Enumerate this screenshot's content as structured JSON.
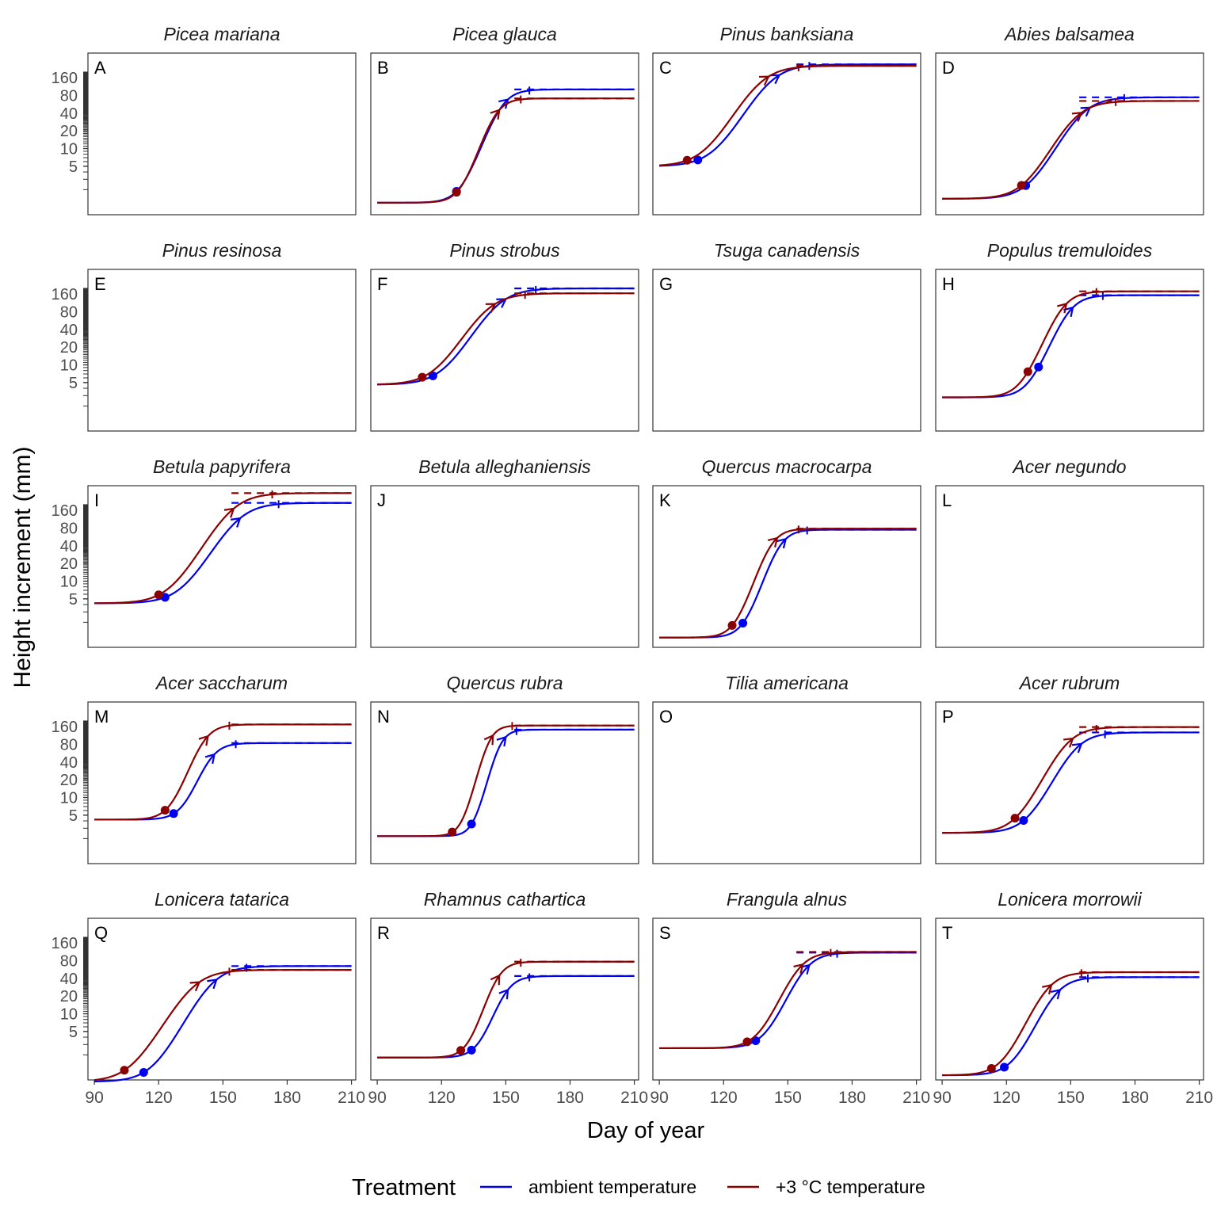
{
  "chart_data": {
    "type": "line",
    "xlabel": "Day of year",
    "ylabel": "Height increment (mm)",
    "xlim": [
      87,
      212
    ],
    "x_ticks": [
      90,
      120,
      150,
      180,
      210
    ],
    "y_scale": "log",
    "y_ticks": [
      5,
      10,
      20,
      40,
      80,
      160
    ],
    "grid": false,
    "legend": {
      "title": "Treatment",
      "position": "bottom",
      "entries": [
        {
          "label": "ambient temperature",
          "color": "#0000ee"
        },
        {
          "label": "+3 °C temperature",
          "color": "#8b0000"
        }
      ]
    },
    "panels": [
      {
        "letter": "A",
        "species": "Picea mariana",
        "has_data": false
      },
      {
        "letter": "B",
        "species": "Picea glauca",
        "has_data": true,
        "ambient": {
          "base": 1.2,
          "asym": 100,
          "mid": 148,
          "scale": 4.2,
          "start_day": 127,
          "max_rate_day": 151,
          "end_day": 161
        },
        "warm": {
          "base": 1.2,
          "asym": 70,
          "mid": 145,
          "scale": 3.8,
          "start_day": 127,
          "max_rate_day": 147,
          "end_day": 157
        }
      },
      {
        "letter": "C",
        "species": "Pinus banksiana",
        "has_data": true,
        "ambient": {
          "base": 5.0,
          "asym": 265,
          "mid": 142,
          "scale": 6.5,
          "start_day": 108,
          "max_rate_day": 146,
          "end_day": 160
        },
        "warm": {
          "base": 5.0,
          "asym": 250,
          "mid": 137,
          "scale": 6.5,
          "start_day": 103,
          "max_rate_day": 141,
          "end_day": 155
        }
      },
      {
        "letter": "D",
        "species": "Abies balsamea",
        "has_data": true,
        "ambient": {
          "base": 1.4,
          "asym": 73,
          "mid": 155,
          "scale": 6.0,
          "start_day": 129,
          "max_rate_day": 159,
          "end_day": 175
        },
        "warm": {
          "base": 1.4,
          "asym": 63,
          "mid": 152,
          "scale": 6.0,
          "start_day": 127,
          "max_rate_day": 155,
          "end_day": 171
        }
      },
      {
        "letter": "E",
        "species": "Pinus resinosa",
        "has_data": false
      },
      {
        "letter": "F",
        "species": "Pinus strobus",
        "has_data": true,
        "ambient": {
          "base": 4.6,
          "asym": 195,
          "mid": 146,
          "scale": 6.5,
          "start_day": 116,
          "max_rate_day": 150,
          "end_day": 164
        },
        "warm": {
          "base": 4.6,
          "asym": 160,
          "mid": 141,
          "scale": 6.5,
          "start_day": 111,
          "max_rate_day": 145,
          "end_day": 159
        }
      },
      {
        "letter": "G",
        "species": "Tsuga canadensis",
        "has_data": false
      },
      {
        "letter": "H",
        "species": "Populus tremuloides",
        "has_data": true,
        "ambient": {
          "base": 2.8,
          "asym": 150,
          "mid": 149,
          "scale": 4.5,
          "start_day": 135,
          "max_rate_day": 151,
          "end_day": 165
        },
        "warm": {
          "base": 2.8,
          "asym": 175,
          "mid": 146,
          "scale": 4.5,
          "start_day": 130,
          "max_rate_day": 148,
          "end_day": 162
        }
      },
      {
        "letter": "I",
        "species": "Betula papyrifera",
        "has_data": true,
        "ambient": {
          "base": 4.2,
          "asym": 210,
          "mid": 157,
          "scale": 6.5,
          "start_day": 123,
          "max_rate_day": 158,
          "end_day": 176
        },
        "warm": {
          "base": 4.2,
          "asym": 310,
          "mid": 154,
          "scale": 6.5,
          "start_day": 120,
          "max_rate_day": 155,
          "end_day": 173
        }
      },
      {
        "letter": "J",
        "species": "Betula alleghaniensis",
        "has_data": false
      },
      {
        "letter": "K",
        "species": "Quercus macrocarpa",
        "has_data": true,
        "ambient": {
          "base": 1.1,
          "asym": 74,
          "mid": 146,
          "scale": 3.8,
          "start_day": 129,
          "max_rate_day": 149,
          "end_day": 159
        },
        "warm": {
          "base": 1.1,
          "asym": 77,
          "mid": 142,
          "scale": 3.8,
          "start_day": 124,
          "max_rate_day": 145,
          "end_day": 155
        }
      },
      {
        "letter": "L",
        "species": "Acer negundo",
        "has_data": false
      },
      {
        "letter": "M",
        "species": "Acer saccharum",
        "has_data": true,
        "ambient": {
          "base": 4.2,
          "asym": 80,
          "mid": 144,
          "scale": 4.0,
          "start_day": 127,
          "max_rate_day": 146,
          "end_day": 156
        },
        "warm": {
          "base": 4.2,
          "asym": 170,
          "mid": 141,
          "scale": 4.0,
          "start_day": 123,
          "max_rate_day": 143,
          "end_day": 153
        }
      },
      {
        "letter": "N",
        "species": "Quercus rubra",
        "has_data": true,
        "ambient": {
          "base": 2.2,
          "asym": 140,
          "mid": 147,
          "scale": 2.8,
          "start_day": 134,
          "max_rate_day": 150,
          "end_day": 155
        },
        "warm": {
          "base": 2.2,
          "asym": 165,
          "mid": 142,
          "scale": 2.8,
          "start_day": 125,
          "max_rate_day": 144,
          "end_day": 153
        }
      },
      {
        "letter": "O",
        "species": "Tilia americana",
        "has_data": false
      },
      {
        "letter": "P",
        "species": "Acer rubrum",
        "has_data": true,
        "ambient": {
          "base": 2.5,
          "asym": 125,
          "mid": 152,
          "scale": 5.5,
          "start_day": 128,
          "max_rate_day": 155,
          "end_day": 166
        },
        "warm": {
          "base": 2.5,
          "asym": 155,
          "mid": 148,
          "scale": 5.5,
          "start_day": 124,
          "max_rate_day": 151,
          "end_day": 162
        }
      },
      {
        "letter": "Q",
        "species": "Lonicera tatarica",
        "has_data": true,
        "ambient": {
          "base": 0.7,
          "asym": 64,
          "mid": 145,
          "scale": 6.0,
          "start_day": 113,
          "max_rate_day": 147,
          "end_day": 161
        },
        "warm": {
          "base": 0.7,
          "asym": 55,
          "mid": 136,
          "scale": 6.5,
          "start_day": 104,
          "max_rate_day": 139,
          "end_day": 153
        }
      },
      {
        "letter": "R",
        "species": "Rhamnus cathartica",
        "has_data": true,
        "ambient": {
          "base": 1.8,
          "asym": 42,
          "mid": 150,
          "scale": 3.8,
          "start_day": 134,
          "max_rate_day": 151,
          "end_day": 161
        },
        "warm": {
          "base": 1.8,
          "asym": 75,
          "mid": 146,
          "scale": 3.5,
          "start_day": 129,
          "max_rate_day": 147,
          "end_day": 157
        }
      },
      {
        "letter": "S",
        "species": "Frangula alnus",
        "has_data": true,
        "ambient": {
          "base": 2.6,
          "asym": 107,
          "mid": 158,
          "scale": 4.8,
          "start_day": 135,
          "max_rate_day": 160,
          "end_day": 173
        },
        "warm": {
          "base": 2.6,
          "asym": 110,
          "mid": 155,
          "scale": 4.8,
          "start_day": 131,
          "max_rate_day": 157,
          "end_day": 170
        }
      },
      {
        "letter": "T",
        "species": "Lonicera morrowii",
        "has_data": true,
        "ambient": {
          "base": 0.9,
          "asym": 41,
          "mid": 143,
          "scale": 5.0,
          "start_day": 119,
          "max_rate_day": 145,
          "end_day": 158
        },
        "warm": {
          "base": 0.9,
          "asym": 50,
          "mid": 139,
          "scale": 5.0,
          "start_day": 113,
          "max_rate_day": 141,
          "end_day": 155
        }
      }
    ]
  }
}
